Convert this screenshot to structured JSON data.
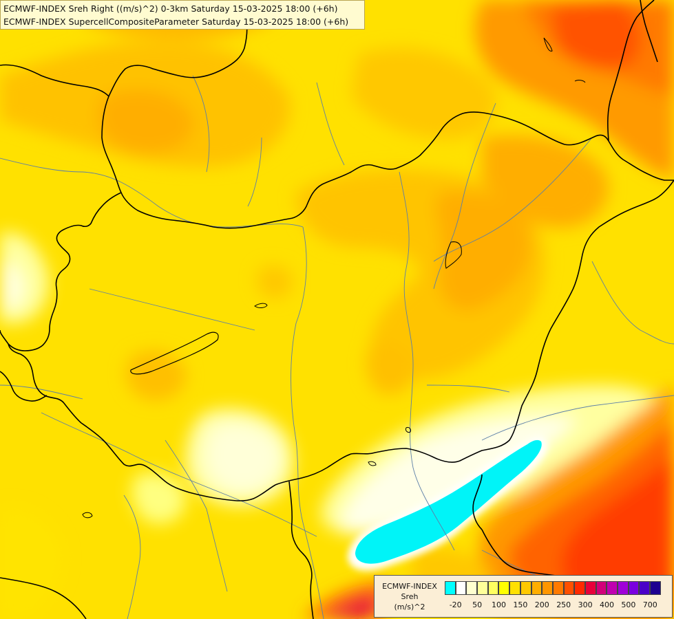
{
  "title": {
    "line1": "ECMWF-INDEX Sreh Right ((m/s)^2) 0-3km Saturday 15-03-2025 18:00 (+6h)",
    "line2": "ECMWF-INDEX SupercellCompositeParameter Saturday 15-03-2025 18:00 (+6h)"
  },
  "legend": {
    "line1": "ECMWF-INDEX",
    "line2": "Sreh",
    "line3": "(m/s)^2",
    "colors": [
      "#00ffff",
      "#ffffff",
      "#ffffd0",
      "#ffff9a",
      "#ffff60",
      "#ffff00",
      "#ffe000",
      "#ffc800",
      "#ffae00",
      "#ff9600",
      "#ff7a00",
      "#ff5000",
      "#ff2a00",
      "#e8003a",
      "#d2007a",
      "#c000b0",
      "#a000d8",
      "#7a00e0",
      "#4a00c8",
      "#1e0090"
    ],
    "ticks": [
      "-20",
      "50",
      "100",
      "150",
      "200",
      "250",
      "300",
      "400",
      "500",
      "700"
    ]
  }
}
